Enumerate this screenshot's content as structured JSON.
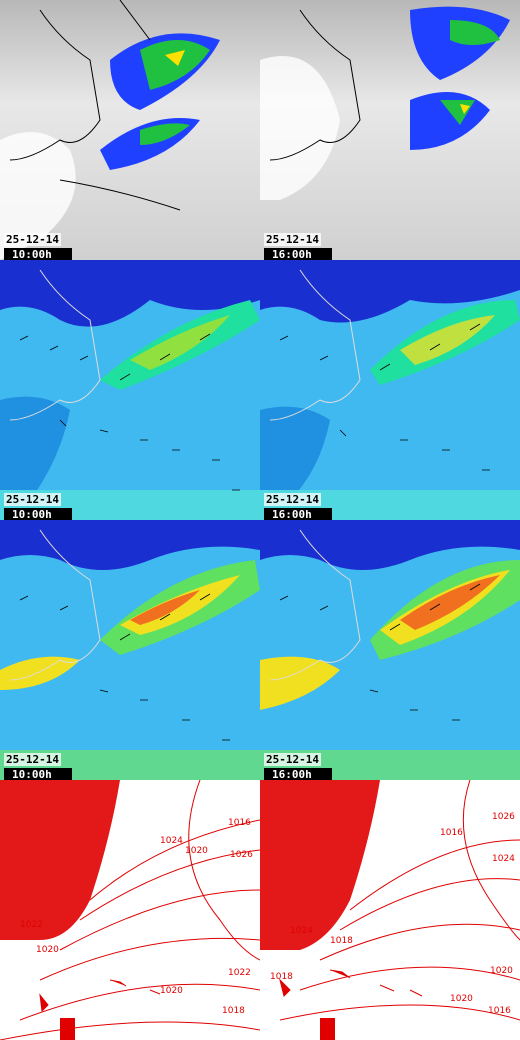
{
  "panels": [
    {
      "row": "precipitation",
      "date": "25-12-14",
      "time": "10:00h"
    },
    {
      "row": "precipitation",
      "date": "25-12-14",
      "time": "16:00h"
    },
    {
      "row": "wind-surface",
      "date": "25-12-14",
      "time": "10:00h"
    },
    {
      "row": "wind-surface",
      "date": "25-12-14",
      "time": "16:00h"
    },
    {
      "row": "wind-upper",
      "date": "25-12-14",
      "time": "10:00h"
    },
    {
      "row": "wind-upper",
      "date": "25-12-14",
      "time": "16:00h"
    },
    {
      "row": "pressure",
      "date": "",
      "time": ""
    },
    {
      "row": "pressure",
      "date": "",
      "time": ""
    }
  ],
  "isobar_labels": {
    "left": [
      "1022",
      "1016",
      "1026",
      "1024",
      "1020",
      "1020",
      "1022",
      "1020",
      "1018"
    ],
    "right": [
      "1018",
      "1026",
      "1024",
      "1024",
      "1020",
      "1016",
      "1018",
      "1020",
      "1016"
    ]
  },
  "colors": {
    "isobar": "#e00000",
    "precip_low": "#2040ff",
    "precip_mid": "#20c040",
    "precip_high": "#ffe000",
    "wind_calm": "#1a2fd0",
    "wind_mid": "#20e0e0",
    "wind_fast": "#f0e020",
    "wind_max": "#f07020"
  }
}
